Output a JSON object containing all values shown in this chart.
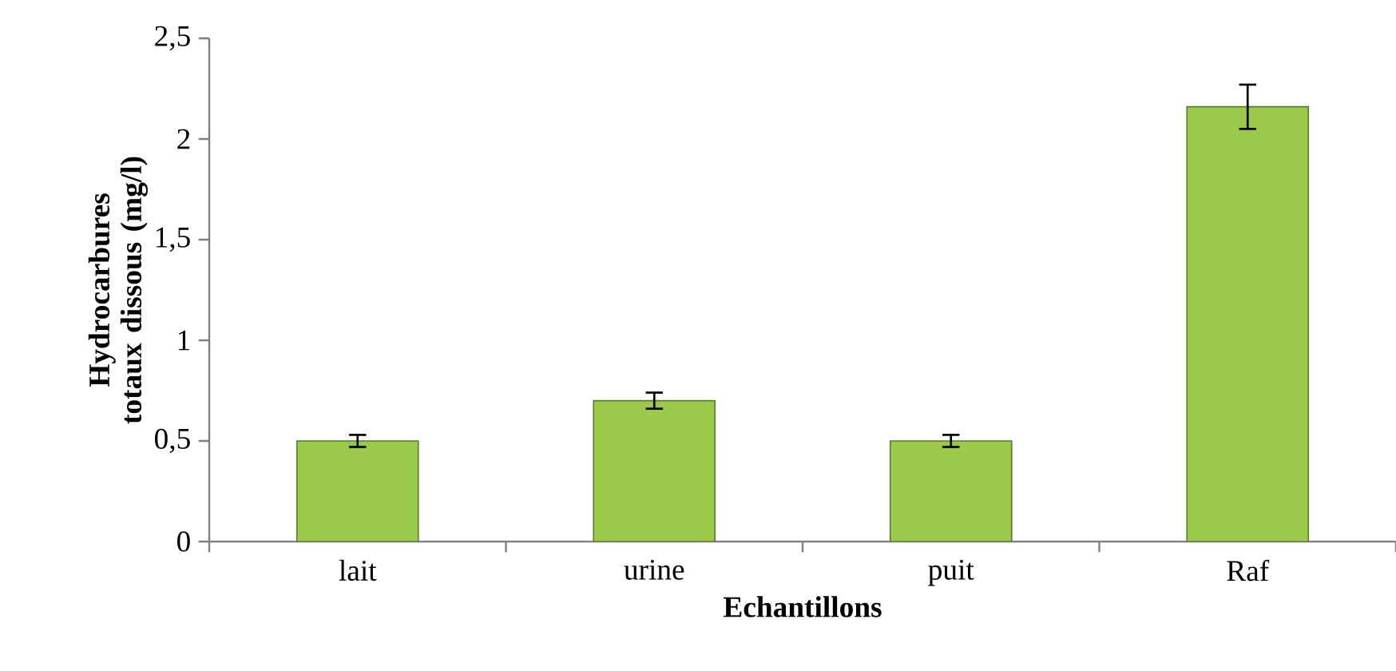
{
  "chart_data": {
    "type": "bar",
    "xlabel": "Echantillons",
    "ylabel": "Hydrocarbures totaux dissous (mg/l)",
    "categories": [
      "lait",
      "urine",
      "puit",
      "Raf"
    ],
    "values": [
      0.5,
      0.7,
      0.5,
      2.16
    ],
    "errors": [
      0.03,
      0.04,
      0.03,
      0.11
    ],
    "color": "#9bc94a",
    "ylim": [
      0,
      2.5
    ],
    "yticks": [
      {
        "value": 0,
        "label": "0"
      },
      {
        "value": 0.5,
        "label": "0,5"
      },
      {
        "value": 1,
        "label": "1"
      },
      {
        "value": 1.5,
        "label": "1,5"
      },
      {
        "value": 2,
        "label": "2"
      },
      {
        "value": 2.5,
        "label": "2,5"
      }
    ]
  }
}
